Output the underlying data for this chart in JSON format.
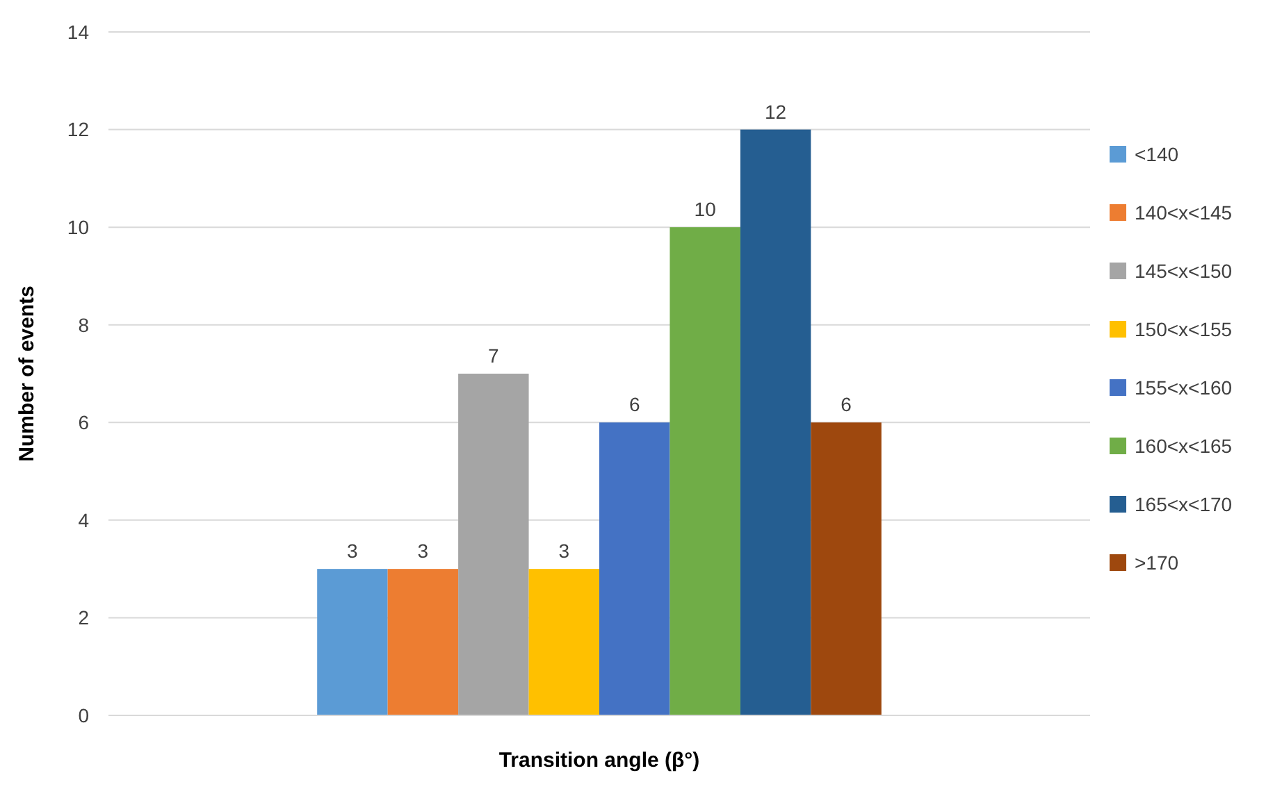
{
  "chart_data": {
    "type": "bar",
    "xlabel": "Transition angle (β°)",
    "ylabel": "Number of events",
    "categories": [
      null
    ],
    "series": [
      {
        "name": "<140",
        "color": "#5b9bd5",
        "values": [
          3
        ]
      },
      {
        "name": "140<x<145",
        "color": "#ed7d31",
        "values": [
          3
        ]
      },
      {
        "name": "145<x<150",
        "color": "#a5a5a5",
        "values": [
          7
        ]
      },
      {
        "name": "150<x<155",
        "color": "#ffc000",
        "values": [
          3
        ]
      },
      {
        "name": "155<x<160",
        "color": "#4472c4",
        "values": [
          6
        ]
      },
      {
        "name": "160<x<165",
        "color": "#70ad47",
        "values": [
          10
        ]
      },
      {
        "name": "165<x<170",
        "color": "#255e91",
        "values": [
          12
        ]
      },
      {
        "name": ">170",
        "color": "#9e480e",
        "values": [
          6
        ]
      }
    ],
    "ylim": [
      0,
      14
    ],
    "yticks": [
      0,
      2,
      4,
      6,
      8,
      10,
      12,
      14
    ],
    "grid": "y",
    "legend": "right",
    "data_labels": true
  }
}
